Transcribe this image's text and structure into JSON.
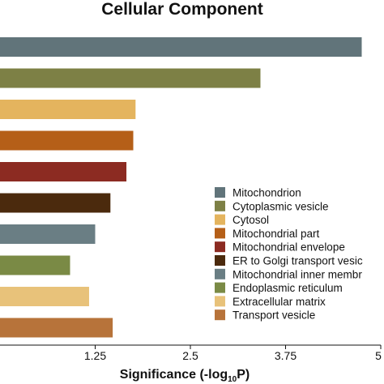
{
  "chart_data": {
    "type": "bar",
    "orientation": "horizontal",
    "title": "Cellular Component",
    "xlabel_parts": [
      "Significance (-log",
      "10",
      "P)"
    ],
    "xlim": [
      0,
      5
    ],
    "xticks": [
      "1.25",
      "2.5",
      "3.75",
      "5"
    ],
    "xtick_values": [
      1.25,
      2.5,
      3.75,
      5
    ],
    "grid": false,
    "legend_position": "bottom-right",
    "categories": [
      "Mitochondrion",
      "Cytoplasmic vesicle",
      "Cytosol",
      "Mitochondrial part",
      "Mitochondrial envelope",
      "ER to Golgi transport vesic",
      "Mitochondrial inner membr",
      "Endoplasmic reticulum",
      "Extracellular matrix",
      "Transport vesicle"
    ],
    "values": [
      4.75,
      3.42,
      1.78,
      1.75,
      1.66,
      1.45,
      1.25,
      0.92,
      1.17,
      1.48
    ],
    "colors": [
      "#61747a",
      "#7d8045",
      "#e4b45e",
      "#b55f18",
      "#8c2b22",
      "#4b2a0d",
      "#6a7e84",
      "#7a8a45",
      "#e8c27a",
      "#b7733a"
    ]
  }
}
